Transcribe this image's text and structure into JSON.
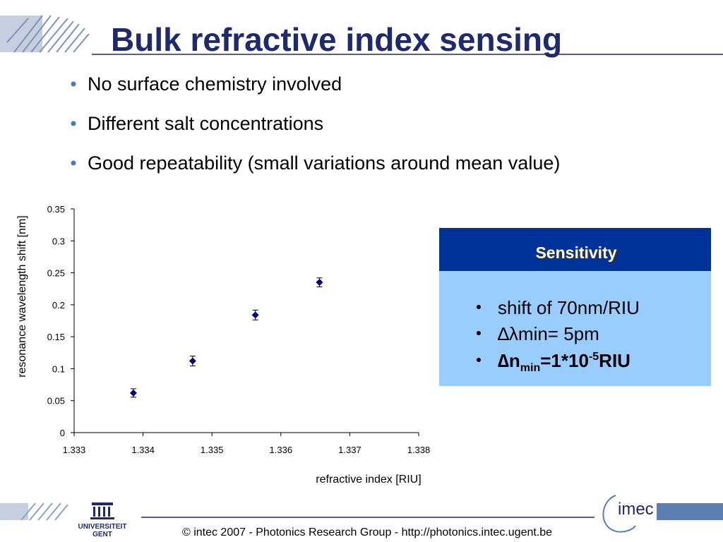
{
  "slide": {
    "title": "Bulk refractive index sensing",
    "bullets": [
      "No surface chemistry involved",
      "Different salt concentrations",
      "Good repeatability (small variations around mean value)"
    ],
    "box": {
      "header": "Sensitivity",
      "items": [
        [
          "shift of 70nm/RIU"
        ],
        [
          "∆λmin= 5pm"
        ],
        [
          "∆n",
          "min",
          "=1*10",
          "-5",
          "RIU"
        ]
      ]
    },
    "footer": "© intec 2007  -  Photonics Research Group  -   http://photonics.intec.ugent.be",
    "logos": [
      "UNIVERSITEIT",
      "GENT",
      "imec"
    ]
  },
  "chart_data": {
    "type": "scatter",
    "x_label": "refractive index [RIU]",
    "y_label": "resonance wavelength shift [nm]",
    "x": [
      1.33386,
      1.33472,
      1.33563,
      1.33656
    ],
    "values": [
      0.062,
      0.112,
      0.184,
      0.235
    ],
    "errors": [
      0.0066,
      0.0077,
      0.0077,
      0.007
    ],
    "color": "#000080",
    "xlim": [
      1.333,
      1.338
    ],
    "xticks": [
      1.333,
      1.334,
      1.335,
      1.336,
      1.337,
      1.338
    ],
    "ylim": [
      0,
      0.35
    ],
    "yticks": [
      0,
      0.05,
      0.1,
      0.15,
      0.2,
      0.25,
      0.3,
      0.35
    ],
    "grid": false
  }
}
